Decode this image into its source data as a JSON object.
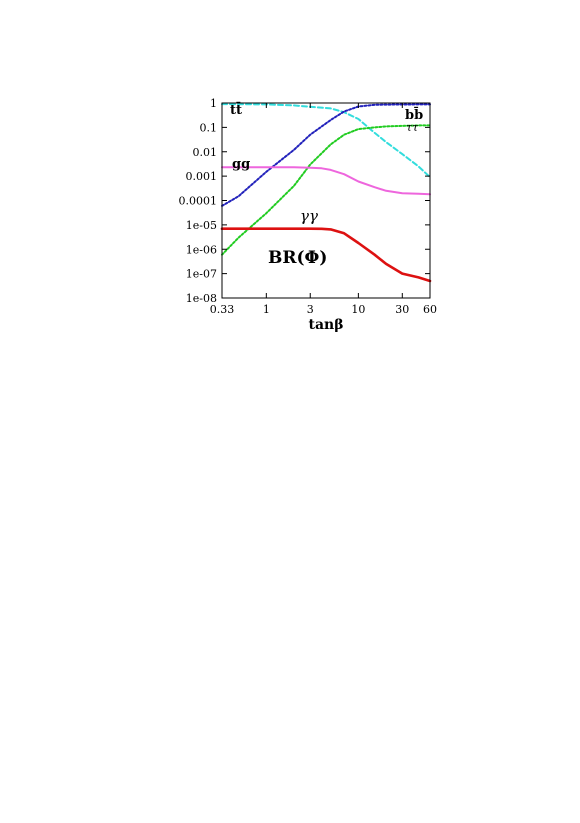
{
  "chart_data": {
    "type": "line",
    "title": "",
    "panel_label": "BR(Φ)",
    "xlabel": "tanβ",
    "ylabel": "",
    "xscale": "log",
    "yscale": "log",
    "xlim": [
      0.33,
      60
    ],
    "ylim": [
      1e-08,
      1
    ],
    "x_ticks": [
      {
        "value": 0.33,
        "label": "0.33"
      },
      {
        "value": 1,
        "label": "1"
      },
      {
        "value": 3,
        "label": "3"
      },
      {
        "value": 10,
        "label": "10"
      },
      {
        "value": 30,
        "label": "30"
      },
      {
        "value": 60,
        "label": "60"
      }
    ],
    "y_ticks": [
      {
        "value": 1,
        "label": "1"
      },
      {
        "value": 0.1,
        "label": "0.1"
      },
      {
        "value": 0.01,
        "label": "0.01"
      },
      {
        "value": 0.001,
        "label": "0.001"
      },
      {
        "value": 0.0001,
        "label": "0.0001"
      },
      {
        "value": 1e-05,
        "label": "1e-05"
      },
      {
        "value": 1e-06,
        "label": "1e-06"
      },
      {
        "value": 1e-07,
        "label": "1e-07"
      },
      {
        "value": 1e-08,
        "label": "1e-08"
      }
    ],
    "grid": false,
    "legend": "inline labels",
    "series": [
      {
        "name": "tt̄",
        "color": "#33dddd",
        "dash": "dashed",
        "x": [
          0.33,
          1,
          2,
          3,
          5,
          7,
          10,
          15,
          20,
          30,
          45,
          60
        ],
        "y": [
          0.9,
          0.88,
          0.8,
          0.7,
          0.6,
          0.42,
          0.22,
          0.06,
          0.025,
          0.008,
          0.0025,
          0.0009
        ]
      },
      {
        "name": "bb̄",
        "color": "#2222bb",
        "dash": "dotted",
        "x": [
          0.33,
          0.5,
          1,
          2,
          3,
          5,
          7,
          10,
          15,
          20,
          30,
          45,
          60
        ],
        "y": [
          6e-05,
          0.00015,
          0.0015,
          0.012,
          0.05,
          0.2,
          0.45,
          0.72,
          0.84,
          0.86,
          0.87,
          0.88,
          0.88
        ]
      },
      {
        "name": "ττ",
        "color": "#22cc22",
        "dash": "dotted",
        "x": [
          0.33,
          0.5,
          1,
          2,
          3,
          5,
          7,
          10,
          15,
          20,
          30,
          45,
          60
        ],
        "y": [
          6e-07,
          3e-06,
          3e-05,
          0.0004,
          0.003,
          0.02,
          0.05,
          0.085,
          0.1,
          0.11,
          0.115,
          0.12,
          0.12
        ]
      },
      {
        "name": "gg",
        "color": "#ee66dd",
        "dash": "solid",
        "x": [
          0.33,
          1,
          2,
          3,
          4,
          5,
          7,
          10,
          15,
          20,
          30,
          45,
          60
        ],
        "y": [
          0.0023,
          0.0023,
          0.0023,
          0.0022,
          0.0021,
          0.0018,
          0.0012,
          0.0006,
          0.00035,
          0.00025,
          0.0002,
          0.00019,
          0.00018
        ]
      },
      {
        "name": "γγ",
        "color": "#dd1111",
        "dash": "solid",
        "x": [
          0.33,
          1,
          2,
          3,
          4,
          5,
          7,
          10,
          15,
          20,
          30,
          45,
          60
        ],
        "y": [
          7e-06,
          7e-06,
          7e-06,
          7e-06,
          6.9e-06,
          6.5e-06,
          4.5e-06,
          1.8e-06,
          6e-07,
          2.5e-07,
          1e-07,
          7e-08,
          5e-08
        ]
      }
    ]
  }
}
